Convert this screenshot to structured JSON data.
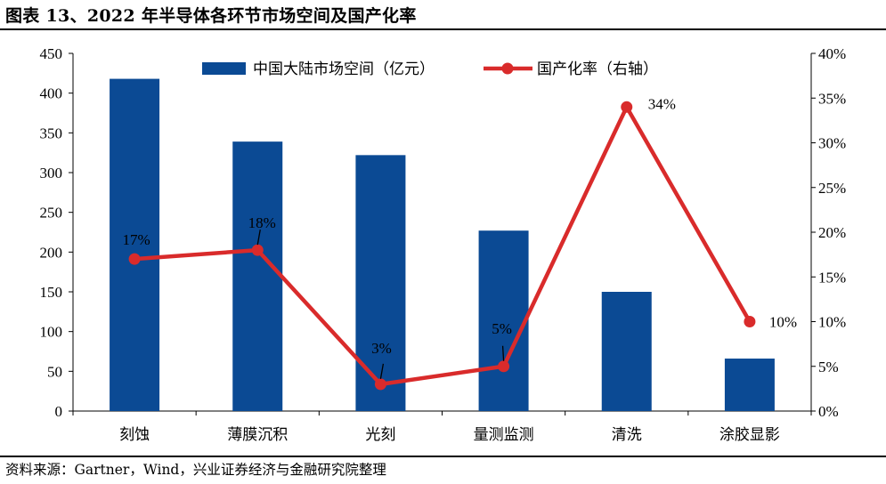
{
  "title": "图表 13、2022 年半导体各环节市场空间及国产化率",
  "source": "资料来源：Gartner，Wind，兴业证券经济与金融研究院整理",
  "chart_data": {
    "type": "bar",
    "categories": [
      "刻蚀",
      "薄膜沉积",
      "光刻",
      "量测监测",
      "清洗",
      "涂胶显影"
    ],
    "series": [
      {
        "name": "中国大陆市场空间（亿元）",
        "type": "bar",
        "axis": "left",
        "values": [
          418,
          339,
          322,
          227,
          150,
          66
        ],
        "color": "#0B4A94"
      },
      {
        "name": "国产化率（右轴）",
        "type": "line",
        "axis": "right",
        "values": [
          17,
          18,
          3,
          5,
          34,
          10
        ],
        "data_labels": [
          "17%",
          "18%",
          "3%",
          "5%",
          "34%",
          "10%"
        ],
        "color": "#D92B2B"
      }
    ],
    "y_left": {
      "ylim": [
        0,
        450
      ],
      "ticks": [
        "0",
        "50",
        "100",
        "150",
        "200",
        "250",
        "300",
        "350",
        "400",
        "450"
      ]
    },
    "y_right": {
      "ylim": [
        0,
        40
      ],
      "ticks": [
        "0%",
        "5%",
        "10%",
        "15%",
        "20%",
        "25%",
        "30%",
        "35%",
        "40%"
      ]
    },
    "legend_position": "top-center",
    "grid": false
  }
}
